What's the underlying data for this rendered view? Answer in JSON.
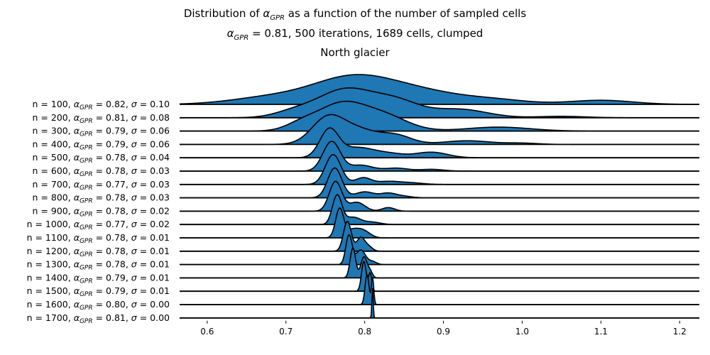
{
  "title": {
    "line1_prefix": "Distribution of ",
    "line1_symbol": "α",
    "line1_subscript": "GPR",
    "line1_suffix": " as a function of the number of sampled cells",
    "line2_symbol": "α",
    "line2_subscript": "GPR",
    "line2_suffix": " = 0.81, 500 iterations, 1689 cells, clumped",
    "line3": "North glacier"
  },
  "colors": {
    "fill": "#1f77b4",
    "line": "#000000",
    "baseline": "#000000"
  },
  "chart_data": {
    "type": "ridgeline",
    "x_axis": {
      "range": [
        0.565,
        1.225
      ],
      "ticks": [
        0.6,
        0.7,
        0.8,
        0.9,
        1.0,
        1.1,
        1.2
      ],
      "tick_labels": [
        "0.6",
        "0.7",
        "0.8",
        "0.9",
        "1.0",
        "1.1",
        "1.2"
      ]
    },
    "label_template": {
      "alpha_symbol": "α",
      "alpha_subscript": "GPR",
      "sigma_symbol": "σ"
    },
    "series": [
      {
        "label": "n = 100, α_GPR = 0.82, σ = 0.10",
        "n": "100",
        "alpha": "0.82",
        "sigma": "0.10",
        "density_components": [
          [
            0.78,
            0.05,
            1.0
          ],
          [
            0.86,
            0.06,
            0.6
          ],
          [
            0.68,
            0.05,
            0.3
          ],
          [
            1.1,
            0.04,
            0.18
          ],
          [
            0.97,
            0.04,
            0.15
          ]
        ]
      },
      {
        "label": "n = 200, α_GPR = 0.81, σ = 0.08",
        "n": "200",
        "alpha": "0.81",
        "sigma": "0.08",
        "density_components": [
          [
            0.775,
            0.035,
            1.0
          ],
          [
            0.84,
            0.03,
            0.55
          ],
          [
            0.92,
            0.035,
            0.3
          ],
          [
            0.71,
            0.025,
            0.2
          ],
          [
            1.05,
            0.03,
            0.05
          ]
        ]
      },
      {
        "label": "n = 300, α_GPR = 0.79, σ = 0.06",
        "n": "300",
        "alpha": "0.79",
        "sigma": "0.06",
        "density_components": [
          [
            0.77,
            0.03,
            1.0
          ],
          [
            0.825,
            0.03,
            0.55
          ],
          [
            0.72,
            0.02,
            0.25
          ],
          [
            0.97,
            0.04,
            0.15
          ]
        ]
      },
      {
        "label": "n = 400, α_GPR = 0.79, σ = 0.06",
        "n": "400",
        "alpha": "0.79",
        "sigma": "0.06",
        "density_components": [
          [
            0.752,
            0.02,
            1.0
          ],
          [
            0.79,
            0.025,
            0.6
          ],
          [
            0.84,
            0.02,
            0.35
          ],
          [
            0.93,
            0.03,
            0.15
          ],
          [
            1.0,
            0.02,
            0.05
          ]
        ]
      },
      {
        "label": "n = 500, α_GPR = 0.78, σ = 0.04",
        "n": "500",
        "alpha": "0.78",
        "sigma": "0.04",
        "density_components": [
          [
            0.755,
            0.012,
            1.0
          ],
          [
            0.79,
            0.02,
            0.35
          ],
          [
            0.885,
            0.02,
            0.2
          ],
          [
            0.83,
            0.02,
            0.15
          ]
        ]
      },
      {
        "label": "n = 600, α_GPR = 0.78, σ = 0.03",
        "n": "600",
        "alpha": "0.78",
        "sigma": "0.03",
        "density_components": [
          [
            0.758,
            0.011,
            1.0
          ],
          [
            0.795,
            0.015,
            0.2
          ],
          [
            0.84,
            0.015,
            0.1
          ],
          [
            0.885,
            0.015,
            0.06
          ]
        ]
      },
      {
        "label": "n = 700, α_GPR = 0.77, σ = 0.03",
        "n": "700",
        "alpha": "0.77",
        "sigma": "0.03",
        "density_components": [
          [
            0.76,
            0.01,
            1.0
          ],
          [
            0.798,
            0.01,
            0.22
          ],
          [
            0.83,
            0.015,
            0.1
          ],
          [
            0.86,
            0.015,
            0.05
          ]
        ]
      },
      {
        "label": "n = 800, α_GPR = 0.78, σ = 0.03",
        "n": "800",
        "alpha": "0.78",
        "sigma": "0.03",
        "density_components": [
          [
            0.762,
            0.009,
            1.0
          ],
          [
            0.8,
            0.012,
            0.2
          ],
          [
            0.83,
            0.01,
            0.15
          ],
          [
            0.85,
            0.01,
            0.05
          ]
        ]
      },
      {
        "label": "n = 900, α_GPR = 0.78, σ = 0.02",
        "n": "900",
        "alpha": "0.78",
        "sigma": "0.02",
        "density_components": [
          [
            0.763,
            0.008,
            1.0
          ],
          [
            0.79,
            0.01,
            0.3
          ],
          [
            0.83,
            0.008,
            0.12
          ]
        ]
      },
      {
        "label": "n = 1000, α_GPR = 0.77, σ = 0.02",
        "n": "1000",
        "alpha": "0.77",
        "sigma": "0.02",
        "density_components": [
          [
            0.765,
            0.006,
            1.0
          ],
          [
            0.785,
            0.01,
            0.25
          ],
          [
            0.81,
            0.01,
            0.08
          ]
        ]
      },
      {
        "label": "n = 1100, α_GPR = 0.78, σ = 0.01",
        "n": "1100",
        "alpha": "0.78",
        "sigma": "0.01",
        "density_components": [
          [
            0.768,
            0.005,
            1.0
          ],
          [
            0.785,
            0.01,
            0.3
          ],
          [
            0.8,
            0.008,
            0.18
          ]
        ]
      },
      {
        "label": "n = 1200, α_GPR = 0.78, σ = 0.01",
        "n": "1200",
        "alpha": "0.78",
        "sigma": "0.01",
        "density_components": [
          [
            0.778,
            0.005,
            1.0
          ],
          [
            0.795,
            0.005,
            0.45
          ],
          [
            0.805,
            0.005,
            0.15
          ]
        ]
      },
      {
        "label": "n = 1300, α_GPR = 0.78, σ = 0.01",
        "n": "1300",
        "alpha": "0.78",
        "sigma": "0.01",
        "density_components": [
          [
            0.78,
            0.004,
            1.0
          ],
          [
            0.795,
            0.006,
            0.5
          ],
          [
            0.81,
            0.005,
            0.1
          ]
        ]
      },
      {
        "label": "n = 1400, α_GPR = 0.79, σ = 0.01",
        "n": "1400",
        "alpha": "0.79",
        "sigma": "0.01",
        "density_components": [
          [
            0.785,
            0.0035,
            1.0
          ],
          [
            0.799,
            0.004,
            0.7
          ],
          [
            0.807,
            0.003,
            0.2
          ]
        ]
      },
      {
        "label": "n = 1500, α_GPR = 0.79, σ = 0.01",
        "n": "1500",
        "alpha": "0.79",
        "sigma": "0.01",
        "density_components": [
          [
            0.799,
            0.003,
            1.0
          ],
          [
            0.807,
            0.002,
            0.6
          ]
        ]
      },
      {
        "label": "n = 1600, α_GPR = 0.80, σ = 0.00",
        "n": "1600",
        "alpha": "0.80",
        "sigma": "0.00",
        "density_components": [
          [
            0.803,
            0.0025,
            1.0
          ],
          [
            0.81,
            0.0015,
            0.9
          ]
        ]
      },
      {
        "label": "n = 1700, α_GPR = 0.81, σ = 0.00",
        "n": "1700",
        "alpha": "0.81",
        "sigma": "0.00",
        "density_components": [
          [
            0.81,
            0.0008,
            1.0
          ]
        ]
      }
    ]
  }
}
